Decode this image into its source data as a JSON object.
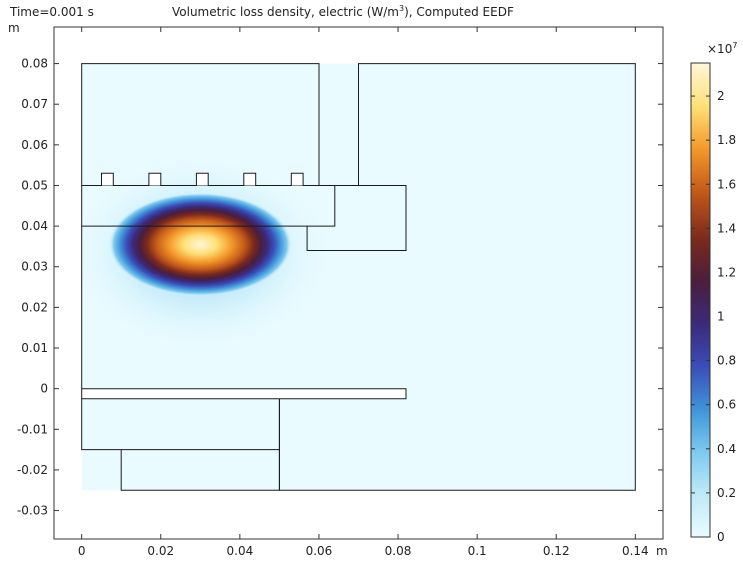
{
  "header": {
    "time_label": "Time=0.001 s",
    "title_main": "Volumetric loss density, electric (W/m",
    "title_sup": "3",
    "title_tail": "), Computed EEDF"
  },
  "chart_data": {
    "type": "heatmap",
    "title": "Volumetric loss density, electric (W/m³), Computed EEDF",
    "time": "0.001 s",
    "x_unit": "m",
    "y_unit": "m",
    "xlim": [
      -0.007,
      0.147
    ],
    "ylim": [
      -0.037,
      0.089
    ],
    "x_ticks": [
      0,
      0.02,
      0.04,
      0.06,
      0.08,
      0.1,
      0.12,
      0.14
    ],
    "x_tick_labels": [
      "0",
      "0.02",
      "0.04",
      "0.06",
      "0.08",
      "0.1",
      "0.12",
      "0.14"
    ],
    "y_ticks": [
      0.08,
      0.07,
      0.06,
      0.05,
      0.04,
      0.03,
      0.02,
      0.01,
      0,
      -0.01,
      -0.02,
      -0.03
    ],
    "y_tick_labels": [
      "0.08",
      "0.07",
      "0.06",
      "0.05",
      "0.04",
      "0.03",
      "0.02",
      "0.01",
      "0",
      "-0.01",
      "-0.02",
      "-0.03"
    ],
    "colorbar": {
      "multiplier": "×10",
      "multiplier_exp": "7",
      "min": 0,
      "max": 21500000,
      "ticks": [
        0,
        0.2,
        0.4,
        0.6,
        0.8,
        1,
        1.2,
        1.4,
        1.6,
        1.8,
        2
      ],
      "tick_labels": [
        "0",
        "0.2",
        "0.4",
        "0.6",
        "0.8",
        "1",
        "1.2",
        "1.4",
        "1.6",
        "1.8",
        "2"
      ],
      "colors": [
        "#e9fbff",
        "#bfe9f7",
        "#7cc9ef",
        "#3f93d8",
        "#3a4db8",
        "#3b2a7a",
        "#4a1e3c",
        "#7c2a1c",
        "#c45a1a",
        "#f39a2a",
        "#ffe07a",
        "#fff7d8"
      ]
    },
    "field_peak": {
      "x": 0.03,
      "y": 0.035,
      "value": 21500000
    },
    "plasma_region": {
      "x": [
        0,
        0.14
      ],
      "y": [
        -0.025,
        0.08
      ]
    },
    "outlines": [
      {
        "name": "upper-coil-block",
        "points": [
          [
            0,
            0.05
          ],
          [
            0,
            0.08
          ],
          [
            0.06,
            0.08
          ],
          [
            0.06,
            0.05
          ]
        ]
      },
      {
        "name": "right-domain",
        "points": [
          [
            0.07,
            0.05
          ],
          [
            0.07,
            0.08
          ],
          [
            0.14,
            0.08
          ],
          [
            0.14,
            -0.025
          ],
          [
            0.05,
            -0.025
          ]
        ]
      },
      {
        "name": "dielectric-window",
        "points": [
          [
            0,
            0.05
          ],
          [
            0.082,
            0.05
          ],
          [
            0.082,
            0.034
          ],
          [
            0.057,
            0.034
          ],
          [
            0.057,
            0.04
          ],
          [
            0,
            0.04
          ],
          [
            0,
            0.05
          ]
        ]
      },
      {
        "name": "window-step",
        "points": [
          [
            0.057,
            0.04
          ],
          [
            0.064,
            0.04
          ],
          [
            0.064,
            0.05
          ]
        ]
      },
      {
        "name": "coil-turn-1",
        "points": [
          [
            0.005,
            0.05
          ],
          [
            0.005,
            0.053
          ],
          [
            0.008,
            0.053
          ],
          [
            0.008,
            0.05
          ]
        ]
      },
      {
        "name": "coil-turn-2",
        "points": [
          [
            0.017,
            0.05
          ],
          [
            0.017,
            0.053
          ],
          [
            0.02,
            0.053
          ],
          [
            0.02,
            0.05
          ]
        ]
      },
      {
        "name": "coil-turn-3",
        "points": [
          [
            0.029,
            0.05
          ],
          [
            0.029,
            0.053
          ],
          [
            0.032,
            0.053
          ],
          [
            0.032,
            0.05
          ]
        ]
      },
      {
        "name": "coil-turn-4",
        "points": [
          [
            0.041,
            0.05
          ],
          [
            0.041,
            0.053
          ],
          [
            0.044,
            0.053
          ],
          [
            0.044,
            0.05
          ]
        ]
      },
      {
        "name": "coil-turn-5",
        "points": [
          [
            0.053,
            0.05
          ],
          [
            0.053,
            0.053
          ],
          [
            0.056,
            0.053
          ],
          [
            0.056,
            0.05
          ]
        ]
      },
      {
        "name": "wafer-plate",
        "points": [
          [
            0,
            0
          ],
          [
            0.082,
            0
          ],
          [
            0.082,
            -0.0025
          ],
          [
            0,
            -0.0025
          ],
          [
            0,
            0
          ]
        ]
      },
      {
        "name": "chuck",
        "points": [
          [
            0,
            -0.0025
          ],
          [
            0,
            -0.015
          ],
          [
            0.05,
            -0.015
          ],
          [
            0.05,
            -0.0025
          ]
        ]
      },
      {
        "name": "pedestal",
        "points": [
          [
            0.01,
            -0.015
          ],
          [
            0.01,
            -0.025
          ],
          [
            0.05,
            -0.025
          ],
          [
            0.05,
            -0.015
          ]
        ]
      },
      {
        "name": "pedestal-wall",
        "points": [
          [
            0.05,
            -0.025
          ],
          [
            0.05,
            -0.0025
          ]
        ]
      },
      {
        "name": "domain-left",
        "points": [
          [
            0,
            0
          ],
          [
            0,
            0.04
          ]
        ]
      }
    ],
    "grid": false,
    "legend": "colorbar-right"
  }
}
